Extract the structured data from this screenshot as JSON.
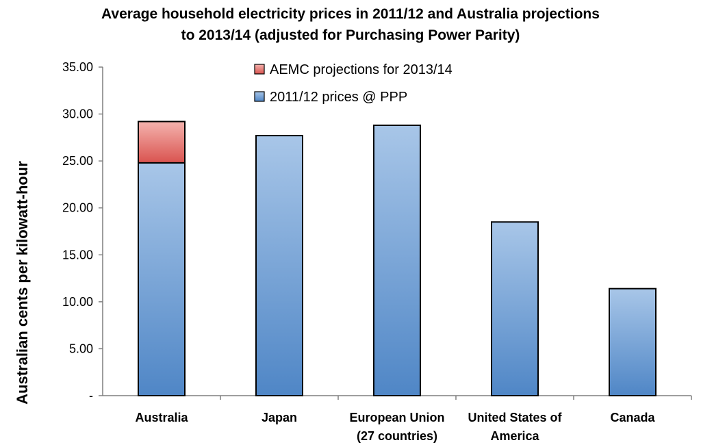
{
  "chart_data": {
    "type": "bar",
    "stacked": true,
    "title_lines": [
      "Average household electricity prices in 2011/12 and Australia projections",
      "to 2013/14 (adjusted for Purchasing Power Parity)"
    ],
    "ylabel": "Australian cents per kilowatt-hour",
    "xlabel": "",
    "ylim": [
      0,
      35
    ],
    "y_ticks": [
      "-",
      "5.00",
      "10.00",
      "15.00",
      "20.00",
      "25.00",
      "30.00",
      "35.00"
    ],
    "categories": [
      [
        "Australia"
      ],
      [
        "Japan"
      ],
      [
        "European Union",
        "(27 countries)"
      ],
      [
        "United States of",
        "America"
      ],
      [
        "Canada"
      ]
    ],
    "series": [
      {
        "name": "2011/12 prices @ PPP",
        "color": "#4f86c6",
        "color_light": "#a8c6e8",
        "values": [
          24.8,
          27.7,
          28.8,
          18.5,
          11.4
        ]
      },
      {
        "name": "AEMC projections for 2013/14",
        "color": "#d9534f",
        "color_light": "#f4b3ae",
        "values": [
          4.4,
          0,
          0,
          0,
          0
        ]
      }
    ],
    "legend": {
      "position": "top",
      "order": [
        "AEMC projections for 2013/14",
        "2011/12 prices @ PPP"
      ]
    },
    "grid": false
  }
}
